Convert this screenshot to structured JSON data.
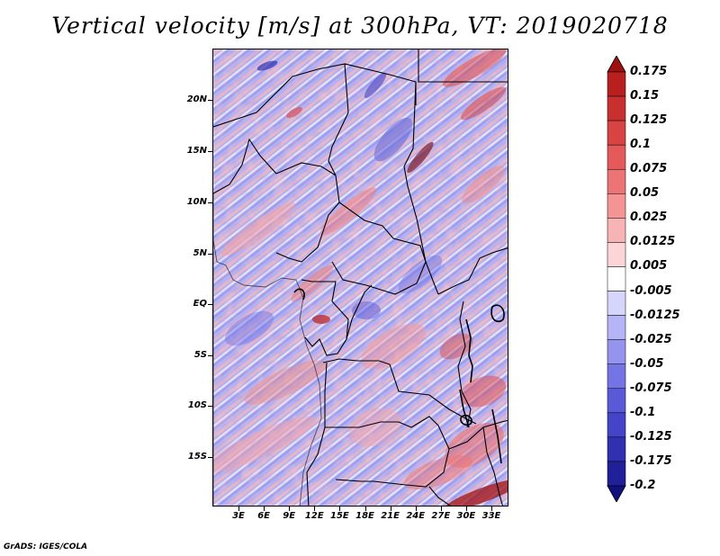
{
  "title": "Vertical velocity [m/s] at 300hPa, VT: 2019020718",
  "footer": "GrADS: IGES/COLA",
  "map": {
    "variable": "Vertical velocity",
    "units": "m/s",
    "level": "300hPa",
    "valid_time": "2019020718",
    "lat_labels": [
      "20N",
      "15N",
      "10N",
      "5N",
      "EQ",
      "5S",
      "10S",
      "15S"
    ],
    "lon_labels": [
      "3E",
      "6E",
      "9E",
      "12E",
      "15E",
      "18E",
      "21E",
      "24E",
      "27E",
      "30E",
      "33E"
    ]
  },
  "colorbar": {
    "labels": [
      "0.175",
      "0.15",
      "0.125",
      "0.1",
      "0.075",
      "0.05",
      "0.025",
      "0.0125",
      "0.005",
      "-0.005",
      "-0.0125",
      "-0.025",
      "-0.05",
      "-0.075",
      "-0.1",
      "-0.125",
      "-0.175",
      "-0.2"
    ],
    "colors": [
      "#a01010",
      "#b82020",
      "#c83030",
      "#d84444",
      "#e45a5a",
      "#ec7474",
      "#f49494",
      "#f8b4b4",
      "#fcd6d6",
      "#ffffff",
      "#d6d6fc",
      "#b4b4f6",
      "#9494ee",
      "#7474e4",
      "#5a5ad8",
      "#4444c8",
      "#3030b0",
      "#202098",
      "#101080"
    ]
  }
}
